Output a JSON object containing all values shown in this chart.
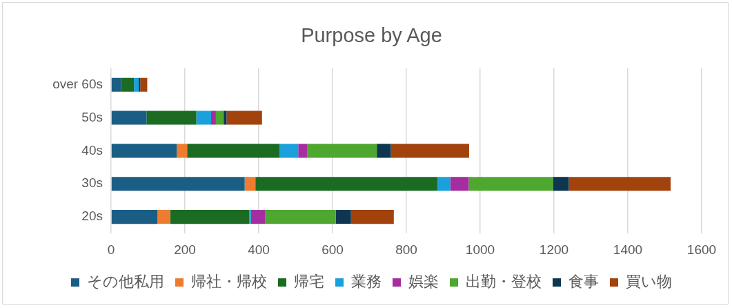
{
  "chart_data": {
    "type": "bar",
    "orientation": "horizontal",
    "stacked": true,
    "title": "Purpose by Age",
    "categories": [
      "over 60s",
      "50s",
      "40s",
      "30s",
      "20s"
    ],
    "series": [
      {
        "name": "その他私用",
        "color": "#1a5e86",
        "values": [
          27,
          96,
          178,
          362,
          126
        ]
      },
      {
        "name": "帰社・帰校",
        "color": "#ee7c30",
        "values": [
          null,
          null,
          28,
          29,
          34
        ]
      },
      {
        "name": "帰宅",
        "color": "#1c6b23",
        "values": [
          35,
          135,
          250,
          493,
          214
        ]
      },
      {
        "name": "業務",
        "color": "#1aa1dc",
        "values": [
          13,
          40,
          51,
          35,
          5
        ]
      },
      {
        "name": "娯楽",
        "color": "#a42ea0",
        "values": [
          null,
          13,
          24,
          50,
          39
        ]
      },
      {
        "name": "出勤・登校",
        "color": "#4ea72e",
        "values": [
          null,
          21,
          189,
          228,
          191
        ]
      },
      {
        "name": "食事",
        "color": "#0e3651",
        "values": [
          4,
          8,
          38,
          43,
          41
        ]
      },
      {
        "name": "買い物",
        "color": "#a2430e",
        "values": [
          19,
          96,
          212,
          276,
          116
        ]
      }
    ],
    "xlim": [
      0,
      1600
    ],
    "xticks": [
      0,
      200,
      400,
      600,
      800,
      1000,
      1200,
      1400,
      1600
    ],
    "grid": "x",
    "legend": "bottom"
  }
}
